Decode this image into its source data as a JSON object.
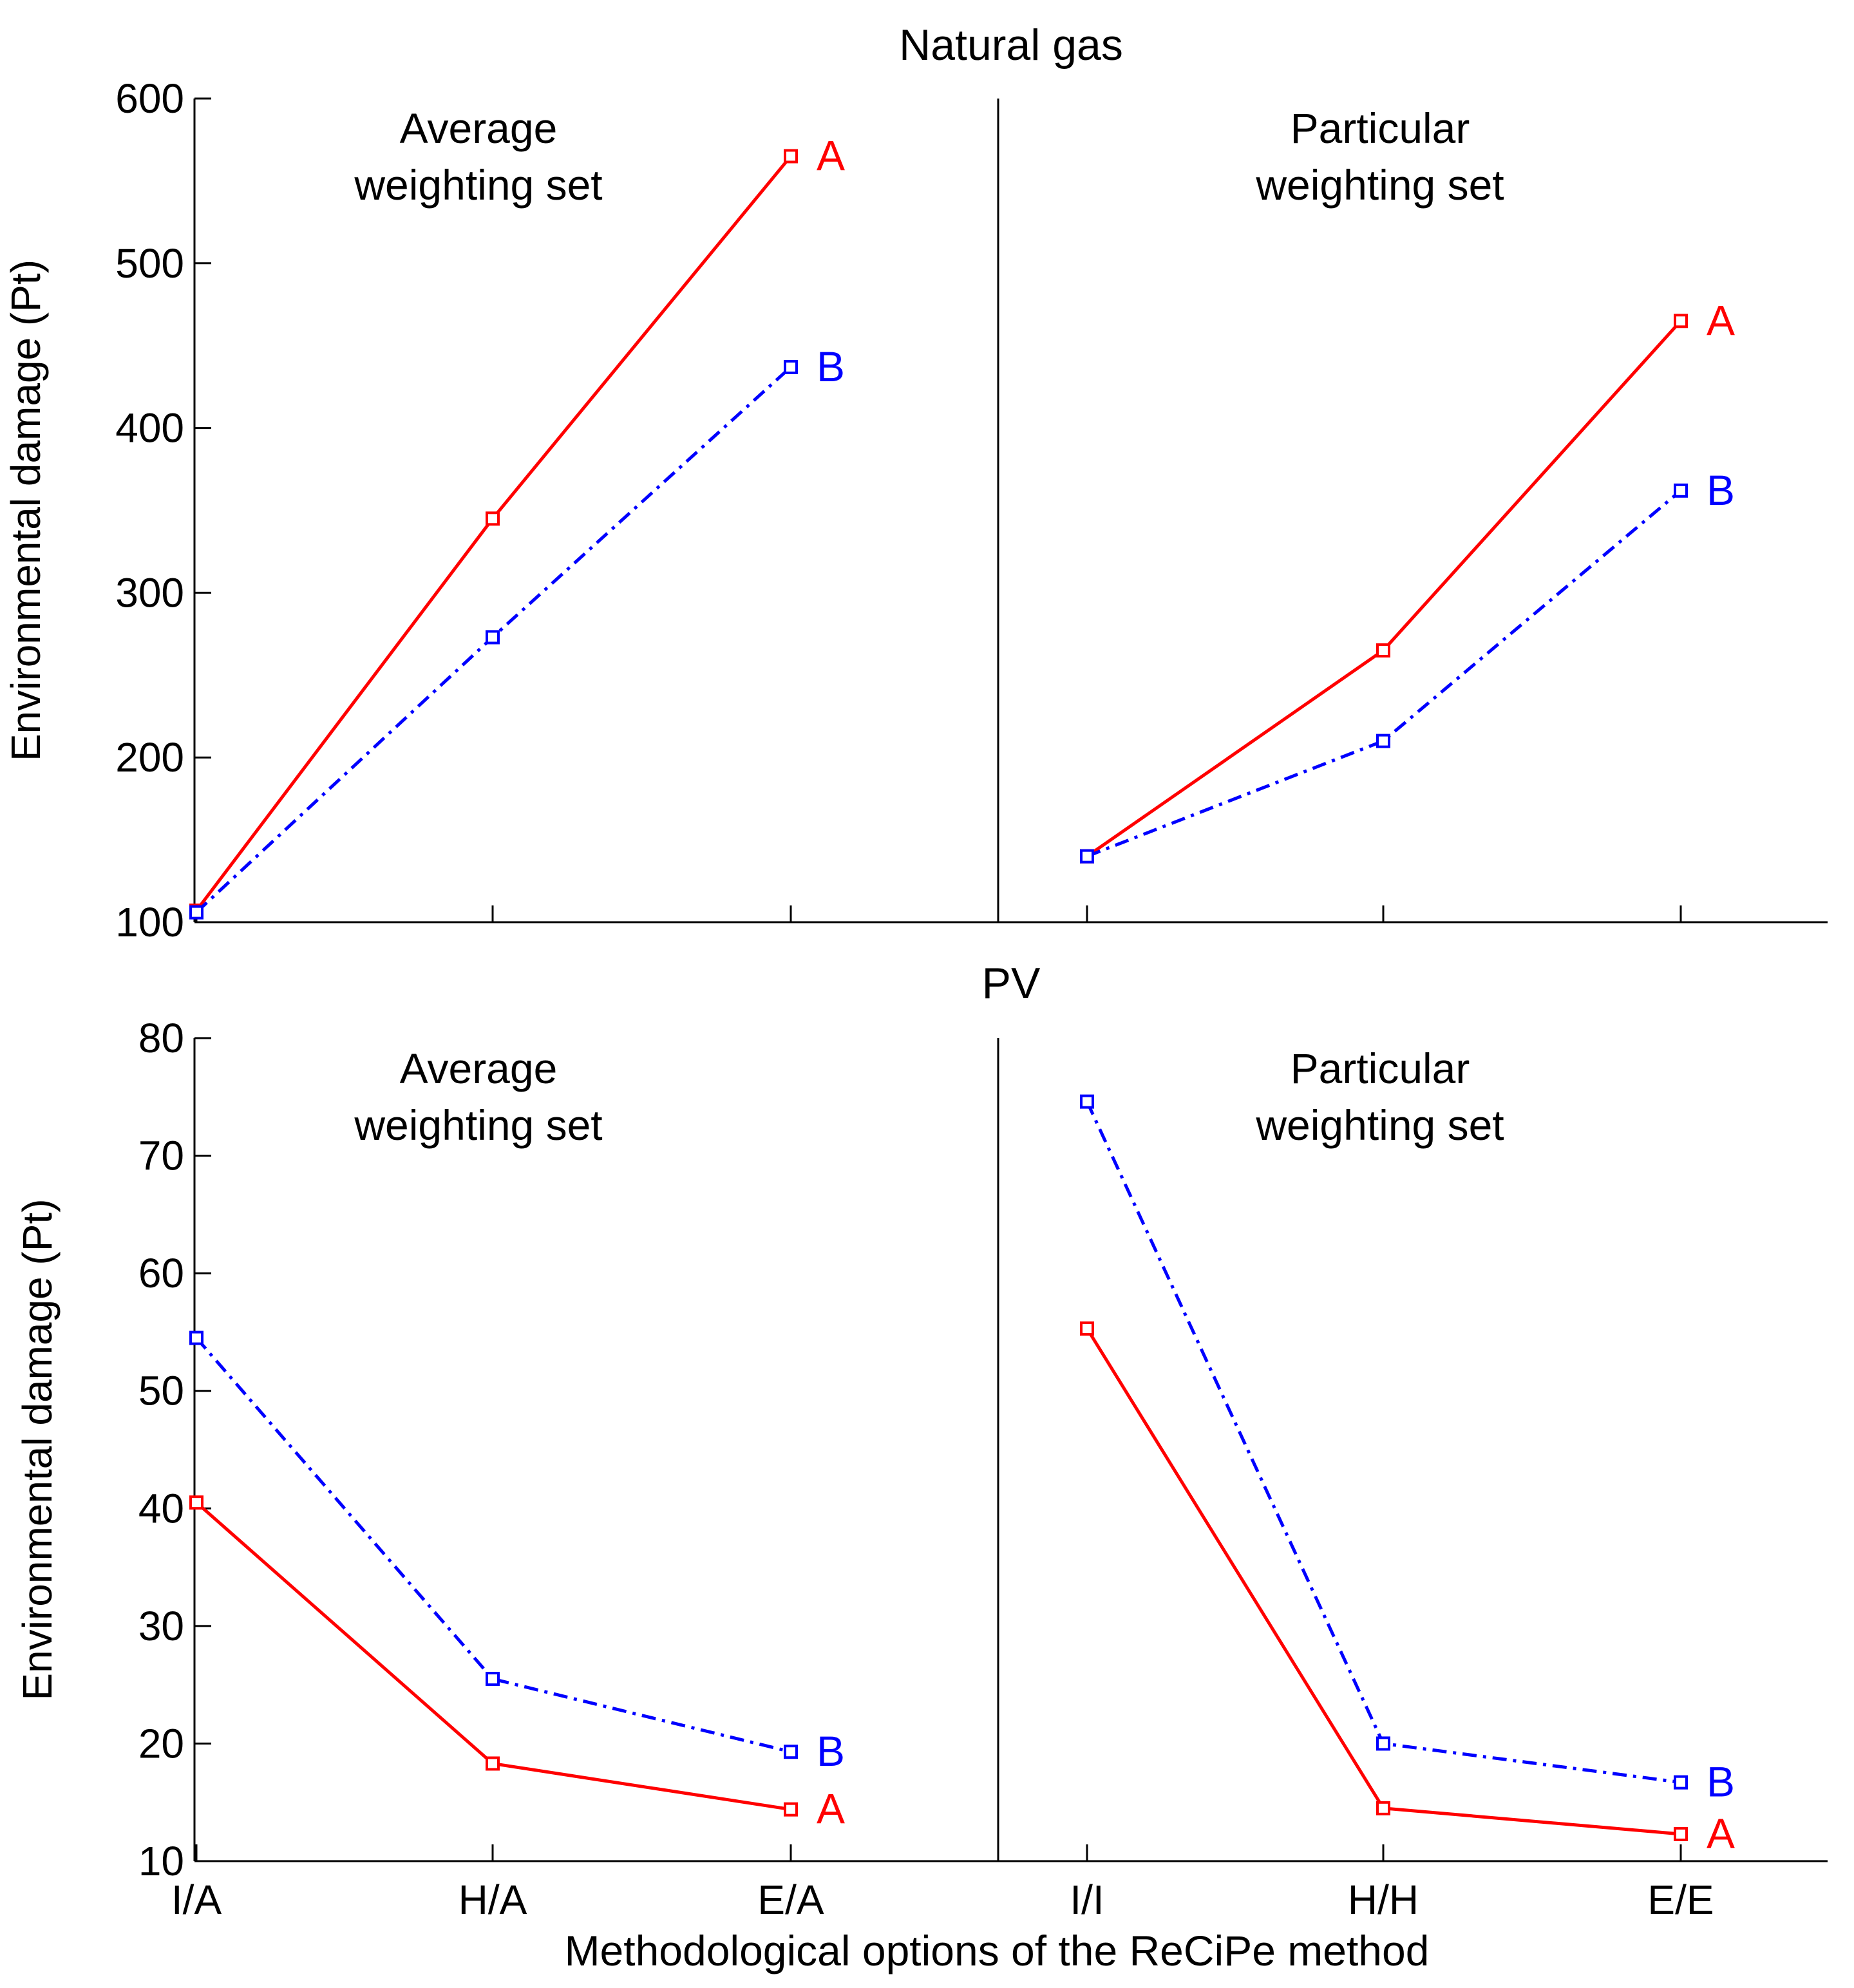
{
  "figure": {
    "xlabel": "Methodological options of the ReCiPe method",
    "ylabel": "Environmental damage (Pt)",
    "colors": {
      "A": "#ff0000",
      "B": "#0000ff",
      "axis": "#000000"
    }
  },
  "chart_data": [
    {
      "type": "line",
      "title": "Natural gas",
      "ylabel": "Environmental damage (Pt)",
      "xlabel": "",
      "ylim": [
        100,
        600
      ],
      "yticks": [
        100,
        200,
        300,
        400,
        500,
        600
      ],
      "categories": [
        "I/A",
        "H/A",
        "E/A",
        "I/I",
        "H/H",
        "E/E"
      ],
      "panels": [
        {
          "title_line1": "Average",
          "title_line2": "weighting set",
          "categories": [
            "I/A",
            "H/A",
            "E/A"
          ]
        },
        {
          "title_line1": "Particular",
          "title_line2": "weighting set",
          "categories": [
            "I/I",
            "H/H",
            "E/E"
          ]
        }
      ],
      "series": [
        {
          "name": "A",
          "color": "#ff0000",
          "style": "solid",
          "values": [
            107,
            345,
            565,
            140,
            265,
            465
          ]
        },
        {
          "name": "B",
          "color": "#0000ff",
          "style": "dashdot",
          "values": [
            106,
            273,
            437,
            140,
            210,
            362
          ]
        }
      ]
    },
    {
      "type": "line",
      "title": "PV",
      "ylabel": "Environmental damage (Pt)",
      "xlabel": "Methodological options of the ReCiPe method",
      "ylim": [
        10,
        80
      ],
      "yticks": [
        10,
        20,
        30,
        40,
        50,
        60,
        70,
        80
      ],
      "categories": [
        "I/A",
        "H/A",
        "E/A",
        "I/I",
        "H/H",
        "E/E"
      ],
      "panels": [
        {
          "title_line1": "Average",
          "title_line2": "weighting set",
          "categories": [
            "I/A",
            "H/A",
            "E/A"
          ]
        },
        {
          "title_line1": "Particular",
          "title_line2": "weighting set",
          "categories": [
            "I/I",
            "H/H",
            "E/E"
          ]
        }
      ],
      "series": [
        {
          "name": "A",
          "color": "#ff0000",
          "style": "solid",
          "values": [
            40.5,
            18.3,
            14.4,
            55.3,
            14.5,
            12.3
          ]
        },
        {
          "name": "B",
          "color": "#0000ff",
          "style": "dashdot",
          "values": [
            54.5,
            25.5,
            19.3,
            74.6,
            20.0,
            16.7
          ]
        }
      ]
    }
  ]
}
